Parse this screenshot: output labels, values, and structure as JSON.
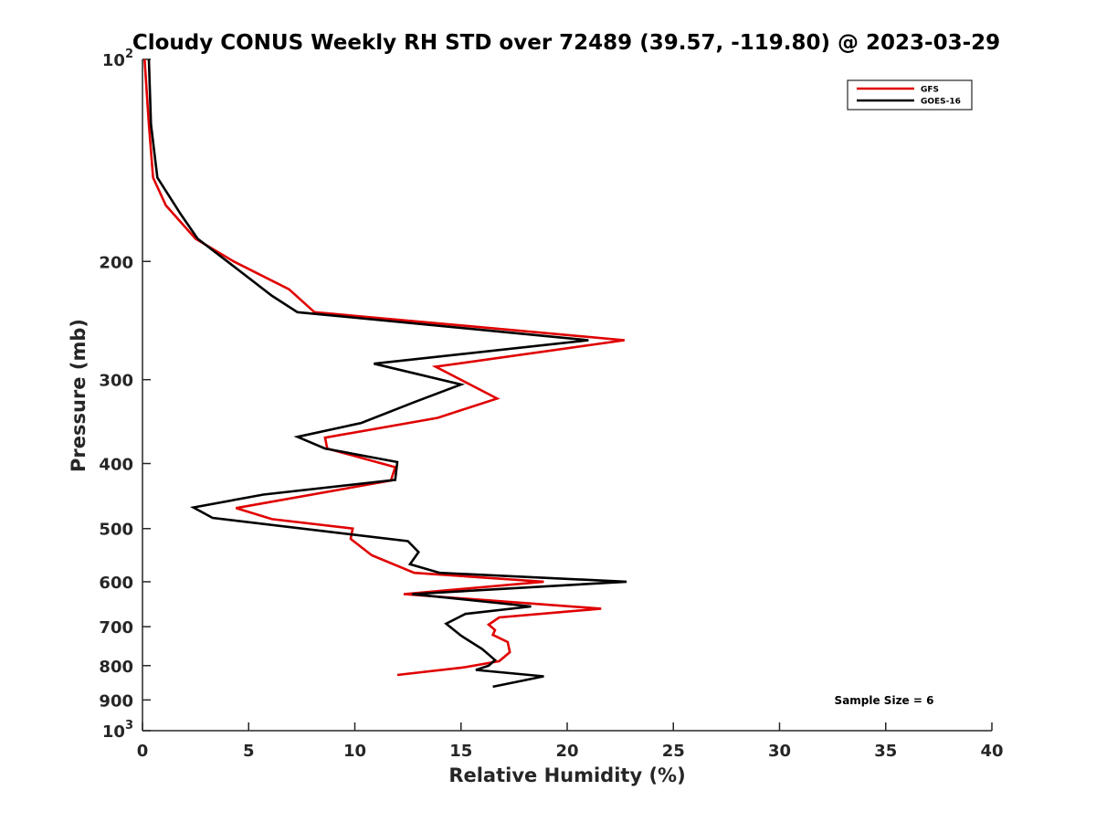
{
  "chart_data": {
    "type": "line",
    "title": "Cloudy CONUS Weekly RH STD over 72489 (39.57, -119.80) @ 2023-03-29",
    "xlabel": "Relative Humidity (%)",
    "ylabel": "Pressure (mb)",
    "xlim": [
      0,
      40
    ],
    "ylim": [
      100,
      1000
    ],
    "y_scale": "log",
    "y_reversed": true,
    "x_ticks": [
      "0",
      "5",
      "10",
      "15",
      "20",
      "25",
      "30",
      "35",
      "40"
    ],
    "y_ticks": [
      {
        "value": 100,
        "label": "10",
        "exp": "2"
      },
      {
        "value": 200,
        "label": "200"
      },
      {
        "value": 300,
        "label": "300"
      },
      {
        "value": 400,
        "label": "400"
      },
      {
        "value": 500,
        "label": "500"
      },
      {
        "value": 600,
        "label": "600"
      },
      {
        "value": 700,
        "label": "700"
      },
      {
        "value": 800,
        "label": "800"
      },
      {
        "value": 900,
        "label": "900"
      },
      {
        "value": 1000,
        "label": "10",
        "exp": "3"
      }
    ],
    "legend_position": "top-right",
    "grid": false,
    "annotation": "Sample Size = 6",
    "series": [
      {
        "name": "GFS",
        "color": "#e00000",
        "points": [
          [
            0.1,
            100
          ],
          [
            0.3,
            125
          ],
          [
            0.5,
            150
          ],
          [
            1.1,
            165
          ],
          [
            2.5,
            185
          ],
          [
            4.3,
            200
          ],
          [
            6.9,
            220
          ],
          [
            8.1,
            238
          ],
          [
            22.7,
            262
          ],
          [
            13.8,
            287
          ],
          [
            16.7,
            320
          ],
          [
            13.9,
            342
          ],
          [
            8.6,
            366
          ],
          [
            8.7,
            380
          ],
          [
            11.9,
            405
          ],
          [
            11.7,
            424
          ],
          [
            4.4,
            466
          ],
          [
            6.1,
            484
          ],
          [
            9.9,
            500
          ],
          [
            9.8,
            518
          ],
          [
            10.8,
            548
          ],
          [
            12.8,
            582
          ],
          [
            18.9,
            600
          ],
          [
            12.3,
            626
          ],
          [
            21.6,
            658
          ],
          [
            16.8,
            678
          ],
          [
            16.3,
            695
          ],
          [
            16.6,
            708
          ],
          [
            16.5,
            720
          ],
          [
            17.2,
            738
          ],
          [
            17.3,
            764
          ],
          [
            16.8,
            788
          ],
          [
            15.1,
            805
          ],
          [
            12.0,
            826
          ]
        ]
      },
      {
        "name": "GOES-16",
        "color": "#000000",
        "points": [
          [
            0.3,
            100
          ],
          [
            0.4,
            125
          ],
          [
            0.7,
            150
          ],
          [
            1.8,
            170
          ],
          [
            2.6,
            185
          ],
          [
            4.0,
            200
          ],
          [
            6.1,
            225
          ],
          [
            7.3,
            238
          ],
          [
            21.0,
            262
          ],
          [
            10.9,
            284
          ],
          [
            15.0,
            305
          ],
          [
            12.8,
            324
          ],
          [
            10.3,
            348
          ],
          [
            7.3,
            365
          ],
          [
            8.6,
            380
          ],
          [
            12.0,
            398
          ],
          [
            11.9,
            423
          ],
          [
            5.7,
            445
          ],
          [
            2.4,
            465
          ],
          [
            3.3,
            482
          ],
          [
            12.5,
            522
          ],
          [
            13.0,
            542
          ],
          [
            12.6,
            565
          ],
          [
            14.0,
            582
          ],
          [
            22.8,
            600
          ],
          [
            12.7,
            626
          ],
          [
            18.3,
            653
          ],
          [
            15.2,
            670
          ],
          [
            14.3,
            693
          ],
          [
            15.0,
            722
          ],
          [
            16.0,
            756
          ],
          [
            16.6,
            785
          ],
          [
            16.3,
            800
          ],
          [
            15.7,
            812
          ],
          [
            18.9,
            830
          ],
          [
            16.5,
            860
          ]
        ]
      }
    ]
  }
}
